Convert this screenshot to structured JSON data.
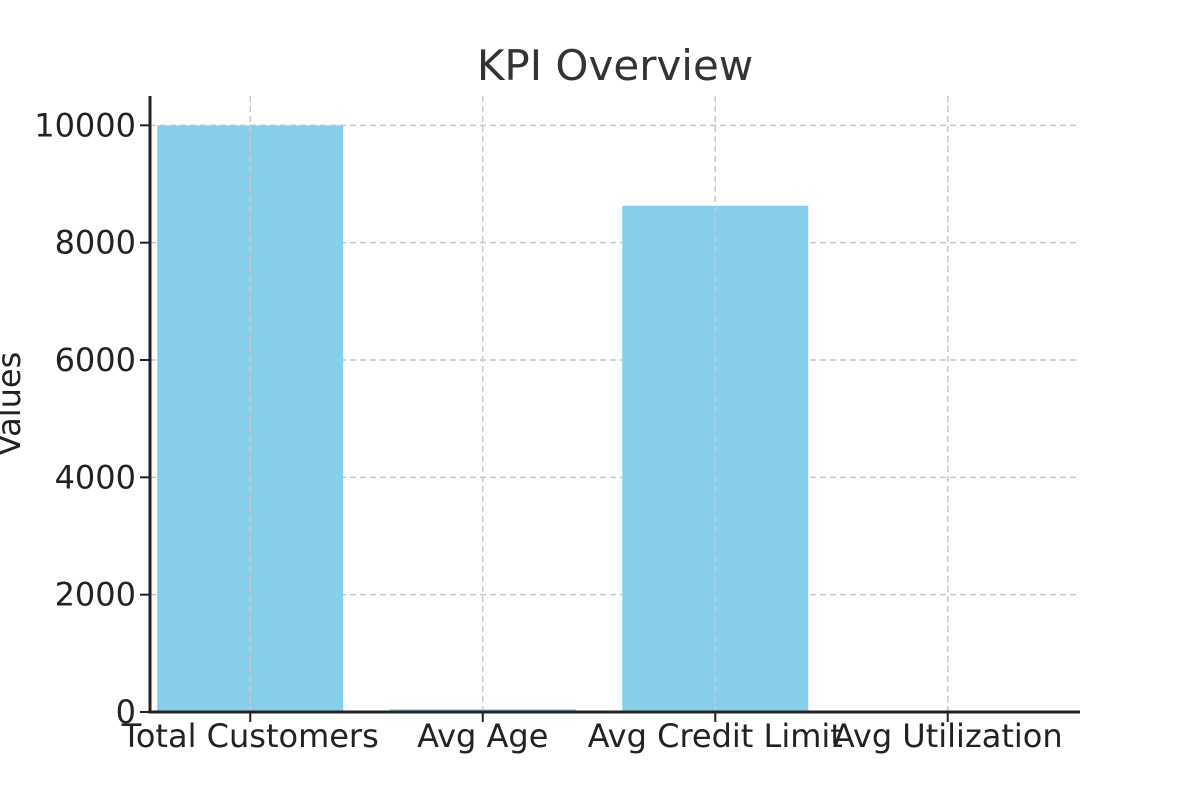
{
  "chart_data": {
    "type": "bar",
    "title": "KPI Overview",
    "xlabel": "",
    "ylabel": "Values",
    "categories": [
      "Total Customers",
      "Avg Age",
      "Avg Credit Limit",
      "Avg Utilization"
    ],
    "values": [
      10000,
      46,
      8630,
      0.27
    ],
    "ylim": [
      0,
      10500
    ],
    "yticks": [
      0,
      2000,
      4000,
      6000,
      8000,
      10000
    ],
    "ytick_labels": [
      "0",
      "2000",
      "4000",
      "6000",
      "8000",
      "10000"
    ],
    "grid": true,
    "bar_color": "#87CEEB"
  }
}
